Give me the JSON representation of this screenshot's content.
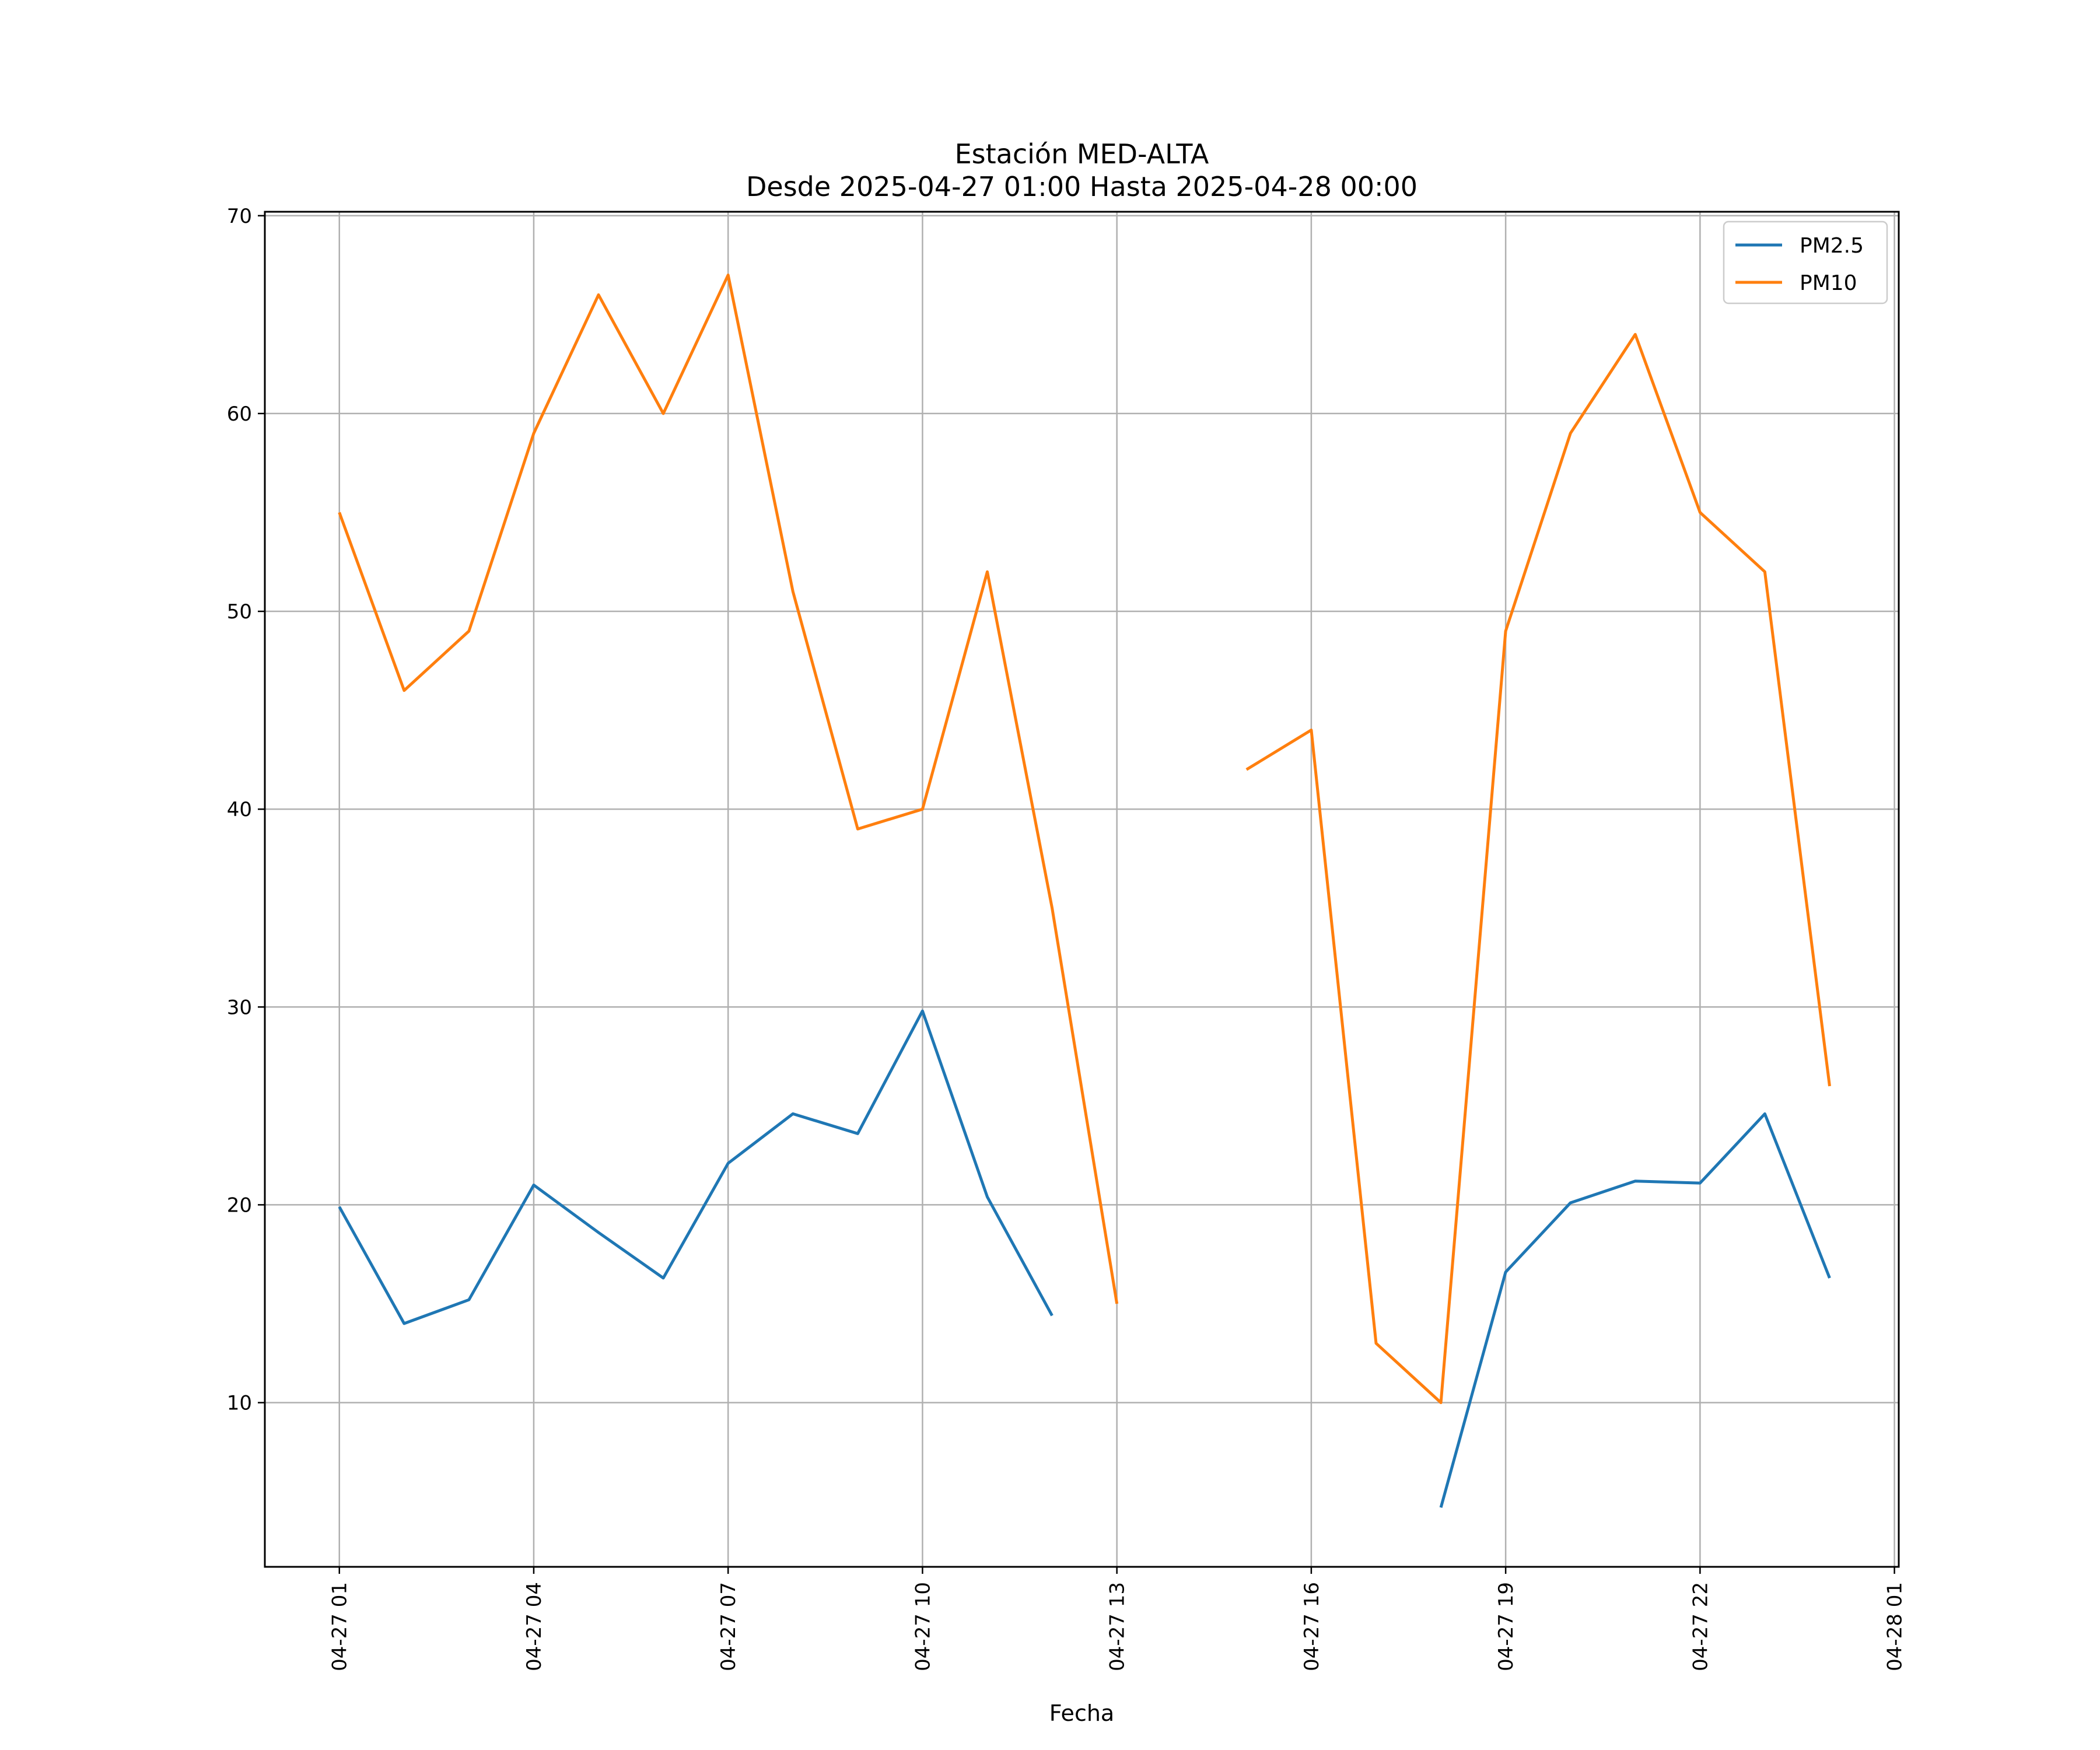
{
  "chart_data": {
    "type": "line",
    "title": "Estación MED-ALTA",
    "subtitle": "Desde 2025-04-27 01:00 Hasta 2025-04-28 00:00",
    "xlabel": "Fecha",
    "ylabel": "",
    "x": [
      "2025-04-27 01:00",
      "2025-04-27 02:00",
      "2025-04-27 03:00",
      "2025-04-27 04:00",
      "2025-04-27 05:00",
      "2025-04-27 06:00",
      "2025-04-27 07:00",
      "2025-04-27 08:00",
      "2025-04-27 09:00",
      "2025-04-27 10:00",
      "2025-04-27 11:00",
      "2025-04-27 12:00",
      "2025-04-27 13:00",
      "2025-04-27 14:00",
      "2025-04-27 15:00",
      "2025-04-27 16:00",
      "2025-04-27 17:00",
      "2025-04-27 18:00",
      "2025-04-27 19:00",
      "2025-04-27 20:00",
      "2025-04-27 21:00",
      "2025-04-27 22:00",
      "2025-04-27 23:00",
      "2025-04-28 00:00"
    ],
    "series": [
      {
        "name": "PM2.5",
        "color": "#1f77b4",
        "values": [
          19.9,
          14.0,
          15.2,
          21.0,
          18.6,
          16.3,
          22.1,
          24.6,
          23.6,
          29.8,
          20.4,
          14.4,
          null,
          null,
          null,
          null,
          null,
          4.7,
          16.6,
          20.1,
          21.2,
          21.1,
          24.6,
          16.3
        ]
      },
      {
        "name": "PM10",
        "color": "#ff7f0e",
        "values": [
          55,
          46,
          49,
          59,
          66,
          60,
          67,
          51,
          39,
          40,
          52,
          35,
          15,
          null,
          42,
          44,
          13,
          10,
          49,
          59,
          64,
          55,
          52,
          26
        ]
      }
    ],
    "xticks": [
      "04-27 01",
      "04-27 04",
      "04-27 07",
      "04-27 10",
      "04-27 13",
      "04-27 16",
      "04-27 19",
      "04-27 22",
      "04-28 01"
    ],
    "yticks": [
      "10",
      "20",
      "30",
      "40",
      "50",
      "60",
      "70"
    ],
    "xlim": [
      "2025-04-26 23:51",
      "2025-04-28 01:04"
    ],
    "ylim": [
      1.7,
      70.2
    ],
    "grid": true,
    "legend_position": "top-right"
  }
}
